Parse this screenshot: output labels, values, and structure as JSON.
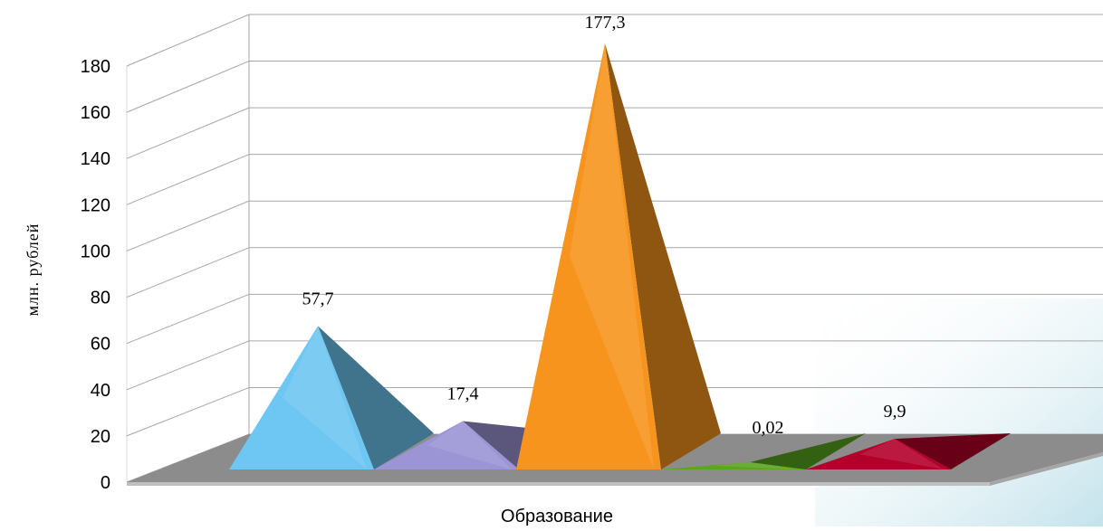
{
  "chart_data": {
    "type": "bar",
    "bar_shape": "pyramid-3d",
    "categories": [
      "Образование"
    ],
    "series": [
      {
        "values": [
          57.7
        ],
        "label": "57,7",
        "color": "#6ec6f2"
      },
      {
        "values": [
          17.4
        ],
        "label": "17,4",
        "color": "#9b95d6"
      },
      {
        "values": [
          177.3
        ],
        "label": "177,3",
        "color": "#f7941d"
      },
      {
        "values": [
          0.02
        ],
        "label": "0,02",
        "color": "#5aa71e"
      },
      {
        "values": [
          9.9
        ],
        "label": "9,9",
        "color": "#b3002a"
      }
    ],
    "title": "",
    "xlabel": "Образование",
    "ylabel": "млн. рублей",
    "ylim": [
      0,
      180
    ],
    "yticks": [
      0,
      20,
      40,
      60,
      80,
      100,
      120,
      140,
      160,
      180
    ],
    "grid": true,
    "legend": "none"
  }
}
